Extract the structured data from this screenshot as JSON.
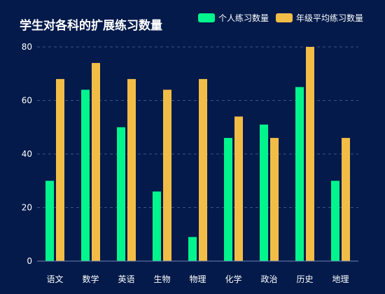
{
  "chart_data": {
    "type": "bar",
    "title": "学生对各科的扩展练习数量",
    "categories": [
      "语文",
      "数学",
      "英语",
      "生物",
      "物理",
      "化学",
      "政治",
      "历史",
      "地理"
    ],
    "series": [
      {
        "name": "个人练习数量",
        "color": "#00f58c",
        "values": [
          30,
          64,
          50,
          26,
          9,
          46,
          51,
          65,
          30
        ]
      },
      {
        "name": "年级平均练习数量",
        "color": "#f2bd47",
        "values": [
          68,
          74,
          68,
          64,
          68,
          54,
          46,
          80,
          46
        ]
      }
    ],
    "ylim": [
      0,
      80
    ],
    "yticks": [
      0,
      20,
      40,
      60,
      80
    ],
    "grid": true,
    "legend": "top-right",
    "colors": {
      "background": "#031a4a",
      "text": "#ffffff",
      "grid": "#3c5286",
      "axis": "#6f84b3"
    }
  }
}
